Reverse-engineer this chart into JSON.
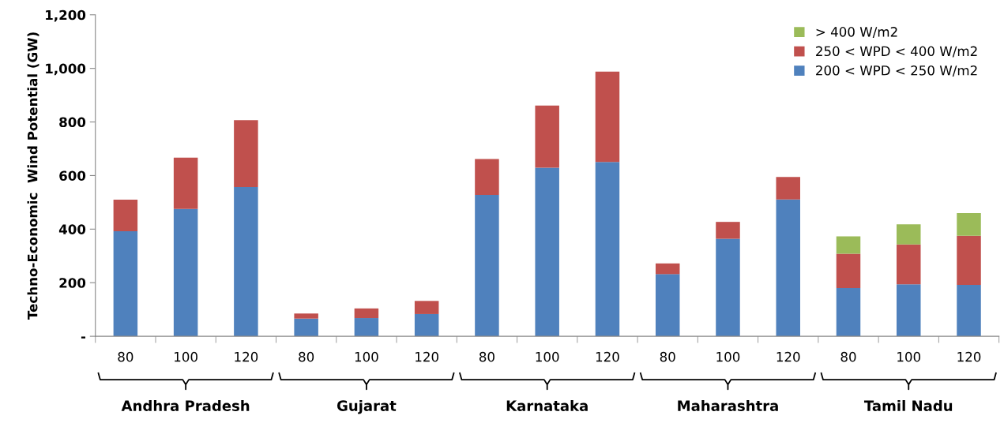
{
  "chart_data": {
    "type": "bar",
    "stacked": true,
    "ylabel": "Techno-Economic  Wind Potential (GW)",
    "categories": [
      "80",
      "100",
      "120",
      "80",
      "100",
      "120",
      "80",
      "100",
      "120",
      "80",
      "100",
      "120",
      "80",
      "100",
      "120"
    ],
    "series": [
      {
        "name": "200 < WPD < 250 W/m2",
        "color": "#4f81bd",
        "values": [
          392,
          475,
          557,
          66,
          68,
          83,
          528,
          629,
          651,
          232,
          364,
          511,
          180,
          194,
          192
        ]
      },
      {
        "name": "250 < WPD < 400 W/m2",
        "color": "#c0504d",
        "values": [
          118,
          192,
          250,
          19,
          36,
          49,
          134,
          232,
          337,
          40,
          63,
          84,
          128,
          149,
          183
        ]
      },
      {
        "name": "> 400 W/m2",
        "color": "#9bbb59",
        "values": [
          0,
          0,
          0,
          0,
          0,
          0,
          0,
          0,
          0,
          0,
          0,
          0,
          65,
          75,
          85
        ]
      }
    ],
    "ylim": [
      0,
      1200
    ],
    "yticks": [
      {
        "value": 0,
        "label": "-"
      },
      {
        "value": 200,
        "label": "200"
      },
      {
        "value": 400,
        "label": "400"
      },
      {
        "value": 600,
        "label": "600"
      },
      {
        "value": 800,
        "label": "800"
      },
      {
        "value": 1000,
        "label": "1,000"
      },
      {
        "value": 1200,
        "label": "1,200"
      }
    ],
    "annotations": [
      "Andhra Pradesh",
      "Gujarat",
      "Karnataka",
      "Maharashtra",
      "Tamil Nadu"
    ],
    "grid": false,
    "legend": "top right"
  }
}
